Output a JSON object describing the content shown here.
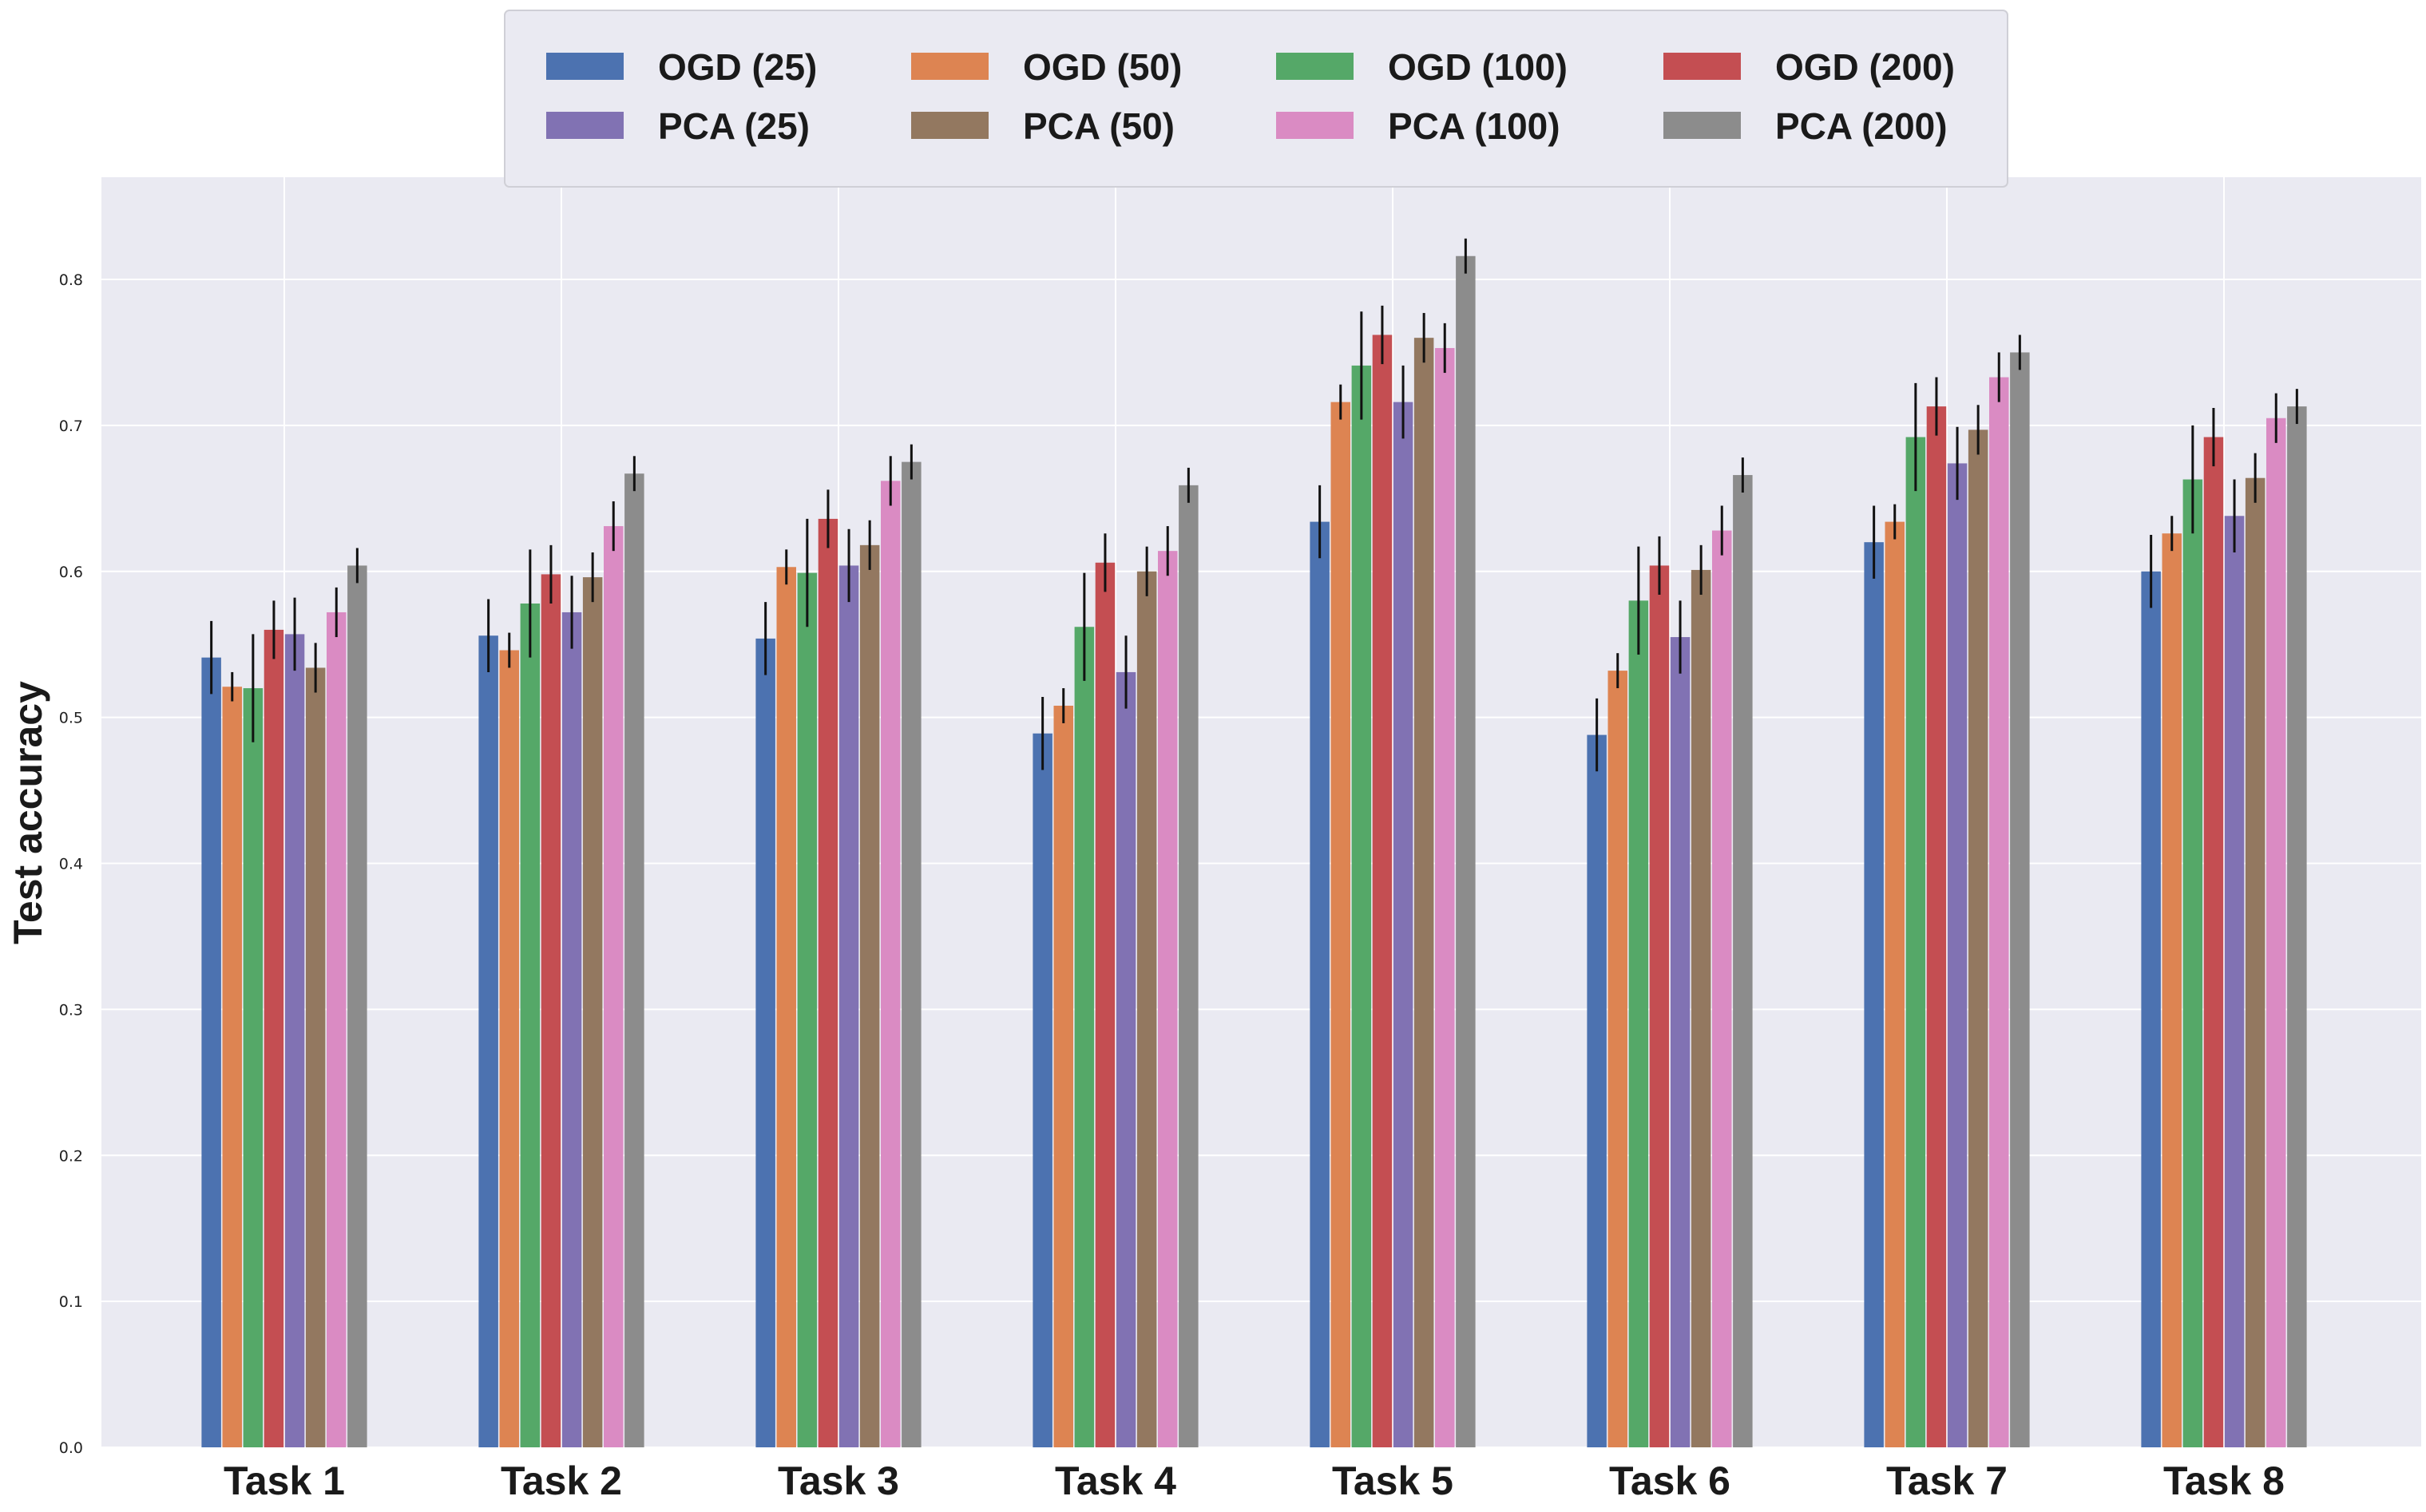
{
  "chart_data": {
    "type": "bar",
    "title": "",
    "xlabel": "",
    "ylabel": "Test accuracy",
    "ylim": [
      0,
      0.87
    ],
    "yticks": [
      "0.0",
      "0.1",
      "0.2",
      "0.3",
      "0.4",
      "0.5",
      "0.6",
      "0.7",
      "0.8"
    ],
    "grid": true,
    "legend_position": "top-center",
    "categories": [
      "Task 1",
      "Task 2",
      "Task 3",
      "Task 4",
      "Task 5",
      "Task 6",
      "Task 7",
      "Task 8"
    ],
    "series": [
      {
        "name": "OGD (25)",
        "color": "#4c72b0",
        "values": [
          0.541,
          0.556,
          0.554,
          0.489,
          0.634,
          0.488,
          0.62,
          0.6
        ],
        "errors": [
          0.025,
          0.025,
          0.025,
          0.025,
          0.025,
          0.025,
          0.025,
          0.025
        ]
      },
      {
        "name": "OGD (50)",
        "color": "#dd8452",
        "values": [
          0.521,
          0.546,
          0.603,
          0.508,
          0.716,
          0.532,
          0.634,
          0.626
        ],
        "errors": [
          0.01,
          0.012,
          0.012,
          0.012,
          0.012,
          0.012,
          0.012,
          0.012
        ]
      },
      {
        "name": "OGD (100)",
        "color": "#55a868",
        "values": [
          0.52,
          0.578,
          0.599,
          0.562,
          0.741,
          0.58,
          0.692,
          0.663
        ],
        "errors": [
          0.037,
          0.037,
          0.037,
          0.037,
          0.037,
          0.037,
          0.037,
          0.037
        ]
      },
      {
        "name": "OGD (200)",
        "color": "#c44e52",
        "values": [
          0.56,
          0.598,
          0.636,
          0.606,
          0.762,
          0.604,
          0.713,
          0.692
        ],
        "errors": [
          0.02,
          0.02,
          0.02,
          0.02,
          0.02,
          0.02,
          0.02,
          0.02
        ]
      },
      {
        "name": "PCA (25)",
        "color": "#8172b3",
        "values": [
          0.557,
          0.572,
          0.604,
          0.531,
          0.716,
          0.555,
          0.674,
          0.638
        ],
        "errors": [
          0.025,
          0.025,
          0.025,
          0.025,
          0.025,
          0.025,
          0.025,
          0.025
        ]
      },
      {
        "name": "PCA (50)",
        "color": "#937860",
        "values": [
          0.534,
          0.596,
          0.618,
          0.6,
          0.76,
          0.601,
          0.697,
          0.664
        ],
        "errors": [
          0.017,
          0.017,
          0.017,
          0.017,
          0.017,
          0.017,
          0.017,
          0.017
        ]
      },
      {
        "name": "PCA (100)",
        "color": "#da8bc3",
        "values": [
          0.572,
          0.631,
          0.662,
          0.614,
          0.753,
          0.628,
          0.733,
          0.705
        ],
        "errors": [
          0.017,
          0.017,
          0.017,
          0.017,
          0.017,
          0.017,
          0.017,
          0.017
        ]
      },
      {
        "name": "PCA (200)",
        "color": "#8c8c8c",
        "values": [
          0.604,
          0.667,
          0.675,
          0.659,
          0.816,
          0.666,
          0.75,
          0.713
        ],
        "errors": [
          0.012,
          0.012,
          0.012,
          0.012,
          0.012,
          0.012,
          0.012,
          0.012
        ]
      }
    ],
    "legend_order": [
      "OGD (25)",
      "OGD (50)",
      "OGD (100)",
      "OGD (200)",
      "PCA (25)",
      "PCA (50)",
      "PCA (100)",
      "PCA (200)"
    ],
    "colors": {
      "plot_background": "#eaeaf2",
      "grid": "#ffffff",
      "error_bar": "#111111",
      "legend_background": "#eaeaf2",
      "legend_border": "#cfcfd6"
    }
  }
}
